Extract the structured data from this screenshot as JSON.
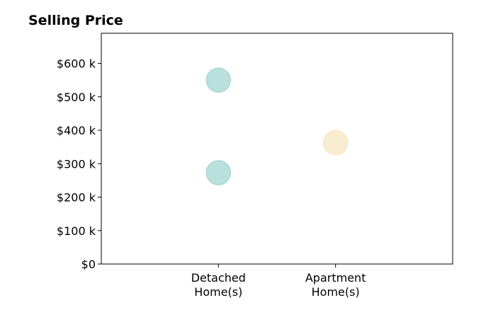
{
  "chart_data": {
    "type": "scatter",
    "title": "Selling Price",
    "xlabel": "",
    "ylabel": "",
    "categories": [
      "Detached\nHome(s)",
      "Apartment\nHome(s)"
    ],
    "x_slots": 3,
    "ylim": [
      0,
      690000
    ],
    "yticks": [
      0,
      100000,
      200000,
      300000,
      400000,
      500000,
      600000
    ],
    "ytick_labels": [
      "$0",
      "$100 k",
      "$200 k",
      "$300 k",
      "$400 k",
      "$500 k",
      "$600 k"
    ],
    "grid": false,
    "points": [
      {
        "category": "Detached\nHome(s)",
        "value": 550000,
        "color": "#a8d8d3"
      },
      {
        "category": "Detached\nHome(s)",
        "value": 273000,
        "color": "#a8d8d3"
      },
      {
        "category": "Apartment\nHome(s)",
        "value": 363000,
        "color": "#f8e8c6"
      }
    ]
  }
}
